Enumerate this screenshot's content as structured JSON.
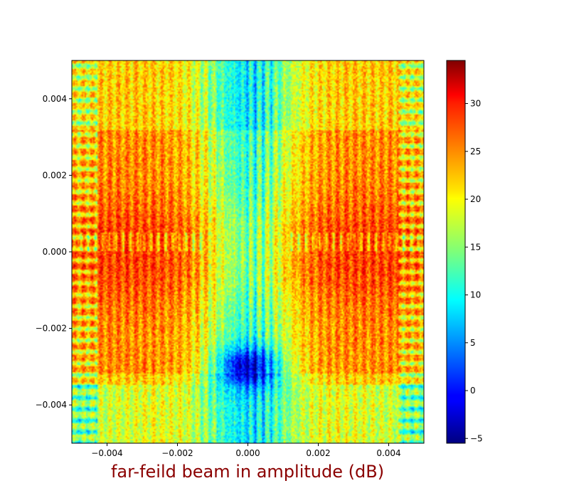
{
  "chart_data": {
    "type": "heatmap",
    "title": "",
    "xlabel": "far-feild beam in amplitude (dB)",
    "ylabel": "",
    "xlim": [
      -0.005,
      0.005
    ],
    "ylim": [
      -0.005,
      0.005
    ],
    "x_ticks": [
      {
        "value": -0.004,
        "label": "−0.004"
      },
      {
        "value": -0.002,
        "label": "−0.002"
      },
      {
        "value": 0.0,
        "label": "0.000"
      },
      {
        "value": 0.002,
        "label": "0.002"
      },
      {
        "value": 0.004,
        "label": "0.004"
      }
    ],
    "y_ticks": [
      {
        "value": -0.004,
        "label": "−0.004"
      },
      {
        "value": -0.002,
        "label": "−0.002"
      },
      {
        "value": 0.0,
        "label": "0.000"
      },
      {
        "value": 0.002,
        "label": "0.002"
      },
      {
        "value": 0.004,
        "label": "0.004"
      }
    ],
    "colormap": "jet",
    "colorbar": {
      "range": [
        -5.5,
        34.5
      ],
      "ticks": [
        {
          "value": -5,
          "label": "−5"
        },
        {
          "value": 0,
          "label": "0"
        },
        {
          "value": 5,
          "label": "5"
        },
        {
          "value": 10,
          "label": "10"
        },
        {
          "value": 15,
          "label": "15"
        },
        {
          "value": 20,
          "label": "20"
        },
        {
          "value": 25,
          "label": "25"
        },
        {
          "value": 30,
          "label": "30"
        }
      ]
    },
    "grid": false,
    "legend": "none"
  },
  "colors": {
    "xlabel": "#8b0000"
  }
}
